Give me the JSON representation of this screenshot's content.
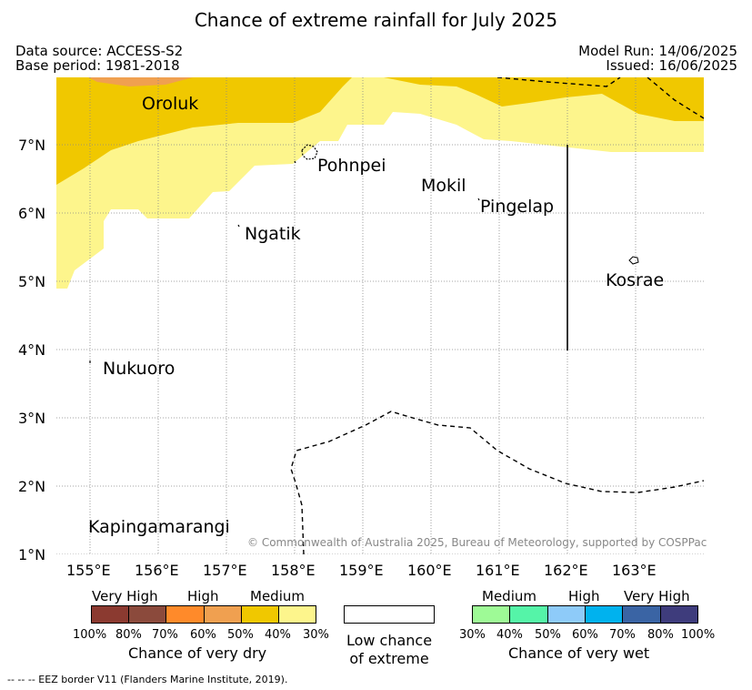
{
  "title": "Chance of extreme rainfall for July 2025",
  "meta": {
    "data_source": "Data source: ACCESS-S2",
    "base_period": "Base period: 1981-2018",
    "model_run": "Model Run: 14/06/2025",
    "issued": "Issued: 16/06/2025"
  },
  "map": {
    "lon_ticks": [
      "155°E",
      "156°E",
      "157°E",
      "158°E",
      "159°E",
      "160°E",
      "161°E",
      "162°E",
      "163°E"
    ],
    "lat_ticks": [
      "7°N",
      "6°N",
      "5°N",
      "4°N",
      "3°N",
      "2°N",
      "1°N"
    ],
    "places": {
      "oroluk": "Oroluk",
      "pohnpei": "Pohnpei",
      "mokil": "Mokil",
      "pingelap": "Pingelap",
      "ngatik": "Ngatik",
      "kosrae": "Kosrae",
      "nukuoro": "Nukuoro",
      "kapingamarangi": "Kapingamarangi"
    },
    "copyright": "© Commonwealth of Australia 2025, Bureau of Meteorology, supported by COSPPac"
  },
  "legend": {
    "dry": {
      "categories": [
        "Very High",
        "High",
        "Medium"
      ],
      "percents": [
        "100%",
        "80%",
        "70%",
        "60%",
        "50%",
        "40%",
        "30%"
      ],
      "title": "Chance of very dry",
      "colors": [
        "#8b3a30",
        "#8b4a3c",
        "#ff8a2a",
        "#f0a050",
        "#f0c800",
        "#fdf58c"
      ]
    },
    "low": {
      "line1": "Low chance",
      "line2": "of extreme"
    },
    "wet": {
      "categories": [
        "Medium",
        "High",
        "Very High"
      ],
      "percents": [
        "30%",
        "40%",
        "50%",
        "60%",
        "70%",
        "80%",
        "100%"
      ],
      "title": "Chance of very wet",
      "colors": [
        "#9efa96",
        "#55f4a8",
        "#8ecbf9",
        "#00b2ee",
        "#3a64a4",
        "#3e3c7c"
      ]
    }
  },
  "footer": {
    "eez": "--  --  -- EEZ border V11 (Flanders Marine Institute, 2019)."
  }
}
